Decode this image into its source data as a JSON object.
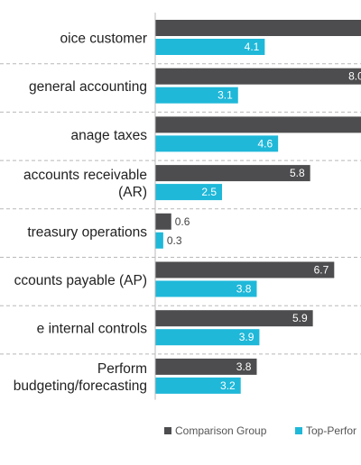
{
  "chart_data": {
    "type": "bar",
    "orientation": "horizontal",
    "categories": [
      "Invoice customer",
      "Perform general accounting",
      "Manage taxes",
      "Process accounts receivable (AR)",
      "Manage treasury operations",
      "Process accounts payable (AP)",
      "Manage internal controls",
      "Perform budgeting/forecasting"
    ],
    "category_lines": [
      [
        "oice customer"
      ],
      [
        "general accounting"
      ],
      [
        "anage taxes"
      ],
      [
        "accounts receivable",
        "(AR)"
      ],
      [
        "treasury operations"
      ],
      [
        "ccounts payable (AP)"
      ],
      [
        "e internal controls"
      ],
      [
        "Perform",
        "budgeting/forecasting"
      ]
    ],
    "series": [
      {
        "name": "Comparison Group",
        "color": "#4d4d4f",
        "values": [
          9.9,
          8.0,
          9.7,
          5.8,
          0.6,
          6.7,
          5.9,
          3.8
        ],
        "labels": [
          null,
          "8.0",
          null,
          "5.8",
          "0.6",
          "6.7",
          "5.9",
          "3.8"
        ]
      },
      {
        "name": "Top-Performers",
        "color": "#1fb8d9",
        "values": [
          4.1,
          3.1,
          4.6,
          2.5,
          0.3,
          3.8,
          3.9,
          3.2
        ],
        "labels": [
          "4.1",
          "3.1",
          "4.6",
          "2.5",
          "0.3",
          "3.8",
          "3.9",
          "3.2"
        ]
      }
    ],
    "legend": {
      "position": "bottom",
      "items": [
        "Comparison Group",
        "Top-Perfor"
      ]
    },
    "xlim": [
      0,
      10
    ],
    "grid": false
  }
}
